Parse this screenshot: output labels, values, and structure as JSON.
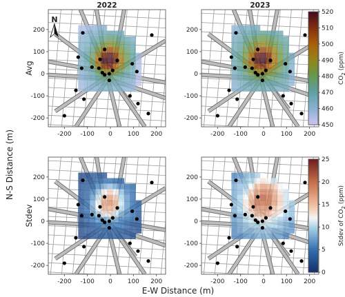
{
  "chart_data": {
    "type": "heatmap",
    "columns": [
      "2022",
      "2023"
    ],
    "rows": [
      "Avg",
      "Stdev"
    ],
    "xlabel": "E-W Distance (m)",
    "ylabel": "N-S Distance (m)",
    "x_ticks": [
      -200,
      -100,
      0,
      100,
      200
    ],
    "y_ticks": [
      -200,
      -100,
      0,
      100,
      200
    ],
    "xlim": [
      -270,
      240
    ],
    "ylim": [
      -240,
      290
    ],
    "north_label": "N",
    "colorbars": [
      {
        "label": "CO2 (ppm)",
        "label_main": "CO",
        "label_sub": "2",
        "label_tail": " (ppm)",
        "range": [
          450,
          520
        ],
        "ticks": [
          450,
          460,
          470,
          480,
          490,
          500,
          510,
          520
        ],
        "colormap": "viridis-brown"
      },
      {
        "label": "Stdev of CO2 (ppm)",
        "label_main": "Stdev of CO",
        "label_sub": "2",
        "label_tail": " (ppm)",
        "range": [
          0,
          25
        ],
        "ticks": [
          0,
          5,
          10,
          15,
          20,
          25
        ],
        "colormap": "diverging-blue-red"
      }
    ],
    "grid_origin": [
      -140,
      220
    ],
    "cell_size_m": 25,
    "panels": [
      {
        "column": "2022",
        "row": "Avg",
        "grid": [
          [
            455,
            455,
            458,
            460,
            462,
            null,
            null,
            null,
            null,
            null,
            null,
            null
          ],
          [
            458,
            460,
            462,
            465,
            468,
            470,
            468,
            466,
            null,
            null,
            null,
            null
          ],
          [
            460,
            463,
            466,
            470,
            474,
            478,
            476,
            472,
            468,
            464,
            null,
            null
          ],
          [
            462,
            465,
            470,
            476,
            484,
            488,
            484,
            478,
            472,
            468,
            null,
            null
          ],
          [
            463,
            468,
            474,
            484,
            498,
            505,
            496,
            486,
            476,
            470,
            null,
            null
          ],
          [
            464,
            470,
            478,
            494,
            512,
            518,
            508,
            492,
            480,
            472,
            458,
            null
          ],
          [
            464,
            470,
            480,
            500,
            518,
            520,
            512,
            494,
            480,
            470,
            456,
            null
          ],
          [
            463,
            468,
            476,
            492,
            506,
            510,
            500,
            488,
            476,
            468,
            455,
            null
          ],
          [
            461,
            465,
            470,
            480,
            488,
            490,
            484,
            478,
            470,
            464,
            454,
            null
          ],
          [
            459,
            462,
            466,
            472,
            476,
            476,
            474,
            470,
            466,
            462,
            453,
            null
          ],
          [
            458,
            460,
            463,
            466,
            468,
            468,
            467,
            465,
            462,
            460,
            452,
            null
          ],
          [
            457,
            459,
            461,
            463,
            464,
            464,
            463,
            462,
            460,
            458,
            null,
            null
          ]
        ]
      },
      {
        "column": "2023",
        "row": "Avg",
        "grid": [
          [
            460,
            462,
            464,
            465,
            466,
            null,
            null,
            null,
            null,
            null,
            null,
            null
          ],
          [
            462,
            465,
            468,
            470,
            472,
            474,
            472,
            470,
            468,
            null,
            null,
            null
          ],
          [
            464,
            468,
            472,
            476,
            480,
            482,
            480,
            476,
            472,
            468,
            null,
            null
          ],
          [
            466,
            470,
            476,
            482,
            488,
            490,
            486,
            482,
            476,
            470,
            null,
            null
          ],
          [
            467,
            472,
            480,
            488,
            500,
            506,
            498,
            490,
            480,
            472,
            null,
            null
          ],
          [
            468,
            474,
            484,
            498,
            512,
            518,
            508,
            494,
            482,
            474,
            466,
            null
          ],
          [
            468,
            474,
            486,
            502,
            516,
            520,
            510,
            496,
            484,
            474,
            464,
            null
          ],
          [
            467,
            472,
            482,
            494,
            504,
            508,
            500,
            490,
            480,
            472,
            463,
            null
          ],
          [
            465,
            470,
            476,
            484,
            490,
            492,
            488,
            482,
            476,
            470,
            462,
            null
          ],
          [
            463,
            467,
            472,
            476,
            480,
            480,
            478,
            476,
            472,
            468,
            461,
            null
          ],
          [
            462,
            465,
            468,
            470,
            472,
            472,
            471,
            470,
            468,
            466,
            460,
            null
          ],
          [
            461,
            463,
            465,
            467,
            468,
            468,
            467,
            466,
            465,
            464,
            null,
            null
          ]
        ]
      },
      {
        "column": "2022",
        "row": "Stdev",
        "grid": [
          [
            2,
            2,
            3,
            3,
            3,
            null,
            null,
            null,
            null,
            null,
            null,
            null
          ],
          [
            2,
            3,
            3,
            4,
            5,
            5,
            4,
            4,
            null,
            null,
            null,
            null
          ],
          [
            3,
            3,
            4,
            6,
            8,
            9,
            8,
            6,
            5,
            4,
            null,
            null
          ],
          [
            3,
            4,
            6,
            9,
            12,
            14,
            12,
            9,
            6,
            5,
            null,
            null
          ],
          [
            3,
            4,
            7,
            11,
            15,
            17,
            14,
            10,
            7,
            5,
            null,
            null
          ],
          [
            3,
            5,
            8,
            12,
            16,
            18,
            15,
            11,
            7,
            5,
            4,
            null
          ],
          [
            3,
            5,
            8,
            12,
            15,
            16,
            14,
            10,
            7,
            5,
            4,
            null
          ],
          [
            3,
            4,
            7,
            10,
            12,
            13,
            11,
            8,
            6,
            5,
            3,
            null
          ],
          [
            2,
            4,
            5,
            7,
            8,
            9,
            8,
            6,
            5,
            4,
            3,
            null
          ],
          [
            2,
            3,
            4,
            5,
            6,
            6,
            5,
            5,
            4,
            3,
            3,
            null
          ],
          [
            2,
            3,
            3,
            4,
            4,
            4,
            4,
            4,
            3,
            3,
            2,
            null
          ],
          [
            2,
            2,
            3,
            3,
            3,
            3,
            3,
            3,
            3,
            2,
            null,
            null
          ]
        ]
      },
      {
        "column": "2023",
        "row": "Stdev",
        "grid": [
          [
            6,
            7,
            8,
            9,
            10,
            null,
            null,
            null,
            null,
            null,
            null,
            null
          ],
          [
            7,
            8,
            9,
            10,
            12,
            13,
            12,
            11,
            null,
            null,
            null,
            null
          ],
          [
            8,
            9,
            10,
            12,
            15,
            17,
            16,
            14,
            12,
            null,
            null,
            null
          ],
          [
            8,
            9,
            11,
            14,
            17,
            19,
            18,
            16,
            13,
            11,
            null,
            null
          ],
          [
            8,
            10,
            12,
            15,
            19,
            21,
            19,
            17,
            14,
            11,
            null,
            null
          ],
          [
            9,
            10,
            13,
            16,
            19,
            20,
            19,
            17,
            14,
            11,
            10,
            null
          ],
          [
            8,
            10,
            12,
            15,
            17,
            18,
            17,
            15,
            13,
            11,
            9,
            null
          ],
          [
            8,
            9,
            11,
            13,
            15,
            16,
            15,
            13,
            12,
            10,
            9,
            null
          ],
          [
            7,
            8,
            10,
            11,
            12,
            13,
            12,
            11,
            10,
            9,
            8,
            null
          ],
          [
            7,
            8,
            9,
            10,
            10,
            11,
            10,
            10,
            9,
            8,
            7,
            null
          ],
          [
            6,
            7,
            8,
            8,
            9,
            9,
            9,
            8,
            8,
            7,
            7,
            null
          ],
          [
            6,
            6,
            7,
            7,
            8,
            8,
            8,
            7,
            7,
            6,
            null,
            null
          ]
        ]
      }
    ],
    "sensors_m": [
      [
        -120,
        185
      ],
      [
        -25,
        110
      ],
      [
        180,
        175
      ],
      [
        -140,
        75
      ],
      [
        -45,
        65
      ],
      [
        30,
        60
      ],
      [
        -125,
        25
      ],
      [
        -80,
        30
      ],
      [
        -25,
        -5
      ],
      [
        -5,
        0
      ],
      [
        10,
        15
      ],
      [
        -35,
        5
      ],
      [
        -5,
        -30
      ],
      [
        -50,
        25
      ],
      [
        95,
        45
      ],
      [
        115,
        10
      ],
      [
        -150,
        -75
      ],
      [
        -115,
        -115
      ],
      [
        85,
        -100
      ],
      [
        120,
        -135
      ],
      [
        -200,
        -190
      ],
      [
        165,
        -180
      ]
    ]
  }
}
